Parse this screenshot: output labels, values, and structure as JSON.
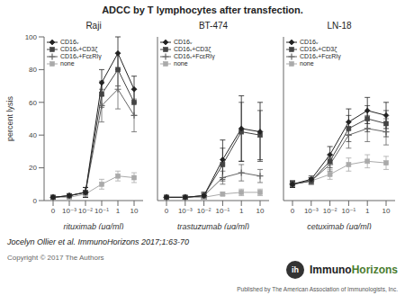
{
  "title": "ADCC by T lymphocytes after transfection.",
  "annotations": [
    "Jocelyn Ollier et al. ImmunoHorizons 2017;1:63-70",
    "Copyright © 2017 The Authors",
    "ih",
    "Immuno",
    "Horizons",
    "Published by The American Association of Immunologists, Inc."
  ],
  "chart_data": [
    {
      "type": "line",
      "title": "Raji",
      "x_label": "rituximab (μg/ml)",
      "y_label": "percent lysis",
      "categories": [
        "0",
        "10⁻³",
        "10⁻²",
        "10⁻¹",
        "1",
        "10"
      ],
      "series": [
        {
          "name": "CD16ᵥ",
          "color": "#222222",
          "marker": "diamond",
          "values": [
            2,
            3,
            5,
            72,
            90,
            68
          ],
          "errors": [
            1,
            1,
            3,
            8,
            10,
            8
          ]
        },
        {
          "name": "CD16ᵥ+CD3ζ",
          "color": "#444444",
          "marker": "square",
          "values": [
            2,
            3,
            5,
            65,
            80,
            60
          ],
          "errors": [
            1,
            1,
            3,
            8,
            10,
            8
          ]
        },
        {
          "name": "CD16ᵥ+FcεRIγ",
          "color": "#666666",
          "marker": "plus",
          "values": [
            2,
            3,
            5,
            58,
            68,
            52
          ],
          "errors": [
            1,
            1,
            3,
            10,
            12,
            10
          ]
        },
        {
          "name": "none",
          "color": "#aaaaaa",
          "marker": "square",
          "values": [
            2,
            2,
            4,
            10,
            15,
            14
          ],
          "errors": [
            1,
            1,
            2,
            3,
            3,
            3
          ]
        }
      ],
      "ylim": [
        0,
        100
      ],
      "yticks": [
        0,
        20,
        40,
        60,
        80,
        100
      ],
      "grid": false,
      "legend": "upper left"
    },
    {
      "type": "line",
      "title": "BT-474",
      "x_label": "trastuzumab (μg/ml)",
      "categories": [
        "0",
        "10⁻³",
        "10⁻²",
        "10⁻¹",
        "1",
        "10"
      ],
      "series": [
        {
          "name": "CD16ᵥ",
          "color": "#222222",
          "marker": "diamond",
          "values": [
            2,
            2,
            3,
            25,
            44,
            42
          ],
          "errors": [
            1,
            1,
            2,
            12,
            20,
            18
          ]
        },
        {
          "name": "CD16ᵥ+CD3ζ",
          "color": "#444444",
          "marker": "square",
          "values": [
            2,
            2,
            3,
            22,
            42,
            40
          ],
          "errors": [
            1,
            1,
            2,
            10,
            18,
            15
          ]
        },
        {
          "name": "CD16ᵥ+FcεRIγ",
          "color": "#666666",
          "marker": "plus",
          "values": [
            2,
            2,
            3,
            14,
            17,
            15
          ],
          "errors": [
            1,
            1,
            1,
            4,
            5,
            4
          ]
        },
        {
          "name": "none",
          "color": "#aaaaaa",
          "marker": "square",
          "values": [
            2,
            2,
            2,
            4,
            5,
            5
          ],
          "errors": [
            1,
            1,
            1,
            1,
            2,
            2
          ]
        }
      ],
      "ylim": [
        0,
        100
      ],
      "yticks": [
        0,
        20,
        40,
        60,
        80,
        100
      ],
      "grid": false,
      "legend": "upper left",
      "tick_labels": "x"
    },
    {
      "type": "line",
      "title": "LN-18",
      "x_label": "cetuximab (μg/ml)",
      "categories": [
        "0",
        "10⁻³",
        "10⁻²",
        "10⁻¹",
        "1",
        "10"
      ],
      "series": [
        {
          "name": "CD16ᵥ",
          "color": "#222222",
          "marker": "diamond",
          "values": [
            10,
            13,
            28,
            48,
            55,
            52
          ],
          "errors": [
            2,
            2,
            5,
            8,
            8,
            8
          ]
        },
        {
          "name": "CD16ᵥ+CD3ζ",
          "color": "#444444",
          "marker": "square",
          "values": [
            10,
            12,
            24,
            44,
            50,
            47
          ],
          "errors": [
            2,
            2,
            4,
            8,
            8,
            8
          ]
        },
        {
          "name": "CD16ᵥ+FcεRIγ",
          "color": "#666666",
          "marker": "plus",
          "values": [
            10,
            12,
            22,
            40,
            44,
            42
          ],
          "errors": [
            2,
            2,
            4,
            8,
            8,
            8
          ]
        },
        {
          "name": "none",
          "color": "#aaaaaa",
          "marker": "square",
          "values": [
            10,
            12,
            16,
            22,
            24,
            23
          ],
          "errors": [
            2,
            2,
            3,
            4,
            4,
            4
          ]
        }
      ],
      "ylim": [
        0,
        100
      ],
      "yticks": [
        0,
        20,
        40,
        60,
        80,
        100
      ],
      "grid": false,
      "legend": "upper left",
      "tick_labels": "x"
    }
  ]
}
